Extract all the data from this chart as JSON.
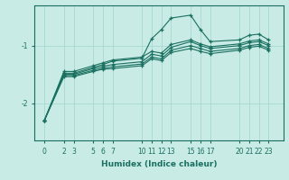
{
  "xlabel": "Humidex (Indice chaleur)",
  "ylabel": "",
  "background_color": "#c8ebe5",
  "grid_color": "#a8d8d0",
  "line_color": "#1a7060",
  "xlim": [
    -1,
    24.5
  ],
  "ylim": [
    -2.65,
    -0.3
  ],
  "xticks": [
    0,
    2,
    3,
    5,
    6,
    7,
    10,
    11,
    12,
    13,
    15,
    16,
    17,
    20,
    21,
    22,
    23
  ],
  "yticks": [
    -2,
    -1
  ],
  "lines": [
    {
      "x": [
        0,
        2,
        3,
        5,
        6,
        7,
        10,
        11,
        12,
        13,
        15,
        16,
        17,
        20,
        21,
        22,
        23
      ],
      "y": [
        -2.3,
        -1.48,
        -1.48,
        -1.38,
        -1.33,
        -1.27,
        -1.22,
        -0.88,
        -0.72,
        -0.52,
        -0.47,
        -0.72,
        -0.93,
        -0.9,
        -0.82,
        -0.8,
        -0.9
      ]
    },
    {
      "x": [
        0,
        2,
        3,
        5,
        6,
        7,
        10,
        11,
        12,
        13,
        15,
        16,
        17,
        20,
        21,
        22,
        23
      ],
      "y": [
        -2.3,
        -1.5,
        -1.5,
        -1.4,
        -1.36,
        -1.33,
        -1.28,
        -1.15,
        -1.18,
        -1.03,
        -0.93,
        -1.0,
        -1.05,
        -1.0,
        -0.95,
        -0.93,
        -1.0
      ]
    },
    {
      "x": [
        0,
        2,
        3,
        5,
        6,
        7,
        10,
        11,
        12,
        13,
        15,
        16,
        17,
        20,
        21,
        22,
        23
      ],
      "y": [
        -2.3,
        -1.52,
        -1.52,
        -1.43,
        -1.39,
        -1.37,
        -1.32,
        -1.2,
        -1.23,
        -1.08,
        -1.0,
        -1.05,
        -1.1,
        -1.05,
        -1.0,
        -0.98,
        -1.05
      ]
    },
    {
      "x": [
        0,
        2,
        3,
        5,
        6,
        7,
        10,
        11,
        12,
        13,
        15,
        16,
        17,
        20,
        21,
        22,
        23
      ],
      "y": [
        -2.3,
        -1.54,
        -1.54,
        -1.45,
        -1.41,
        -1.4,
        -1.35,
        -1.23,
        -1.26,
        -1.12,
        -1.05,
        -1.1,
        -1.14,
        -1.08,
        -1.03,
        -1.01,
        -1.08
      ]
    },
    {
      "x": [
        0,
        2,
        3,
        5,
        6,
        7,
        10,
        11,
        12,
        13,
        15,
        16,
        17,
        20,
        21,
        22,
        23
      ],
      "y": [
        -2.3,
        -1.45,
        -1.45,
        -1.35,
        -1.3,
        -1.25,
        -1.2,
        -1.1,
        -1.13,
        -0.98,
        -0.9,
        -0.97,
        -1.02,
        -0.97,
        -0.92,
        -0.9,
        -0.97
      ]
    }
  ]
}
